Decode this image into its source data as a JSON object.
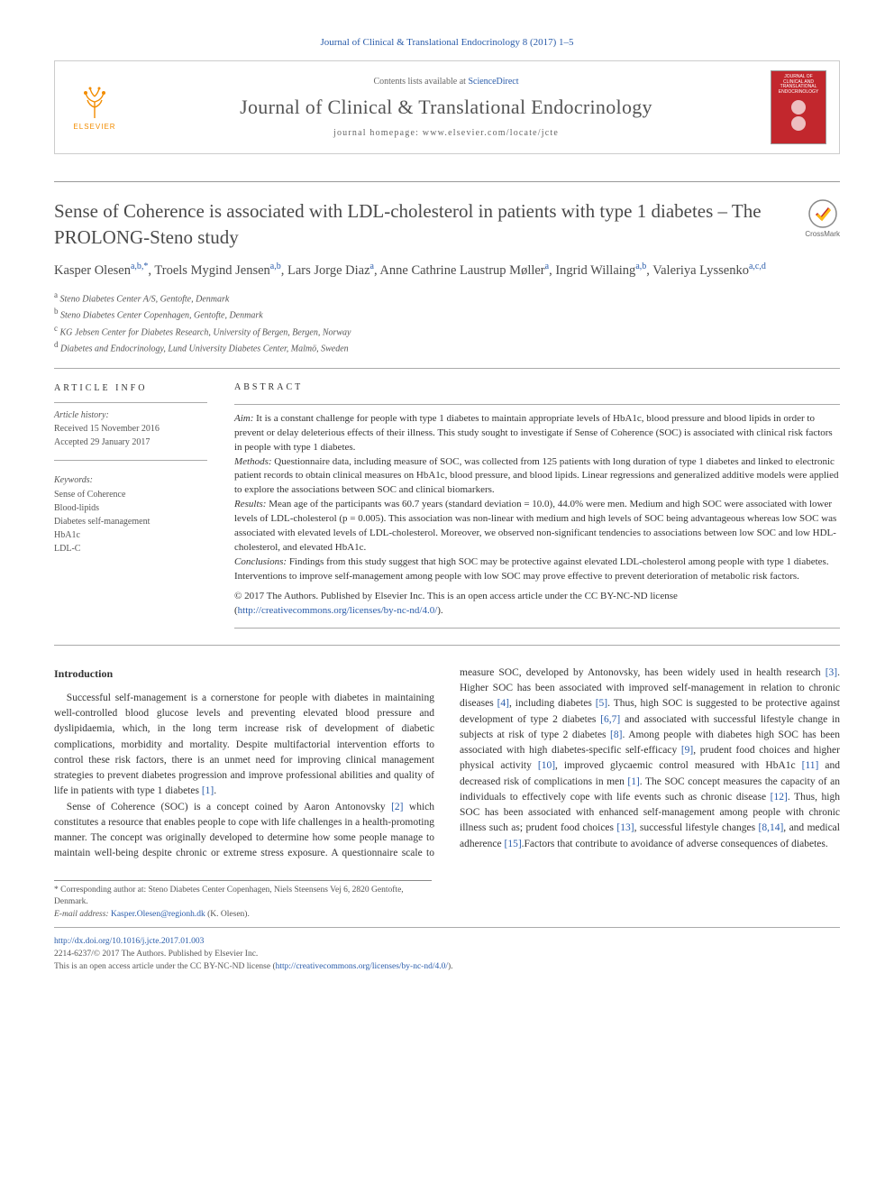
{
  "journal_ref": "Journal of Clinical & Translational Endocrinology 8 (2017) 1–5",
  "header": {
    "contents_prefix": "Contents lists available at ",
    "contents_link": "ScienceDirect",
    "journal_name": "Journal of Clinical & Translational Endocrinology",
    "homepage_prefix": "journal homepage: ",
    "homepage_url": "www.elsevier.com/locate/jcte",
    "publisher_logo_text": "ELSEVIER",
    "cover_text": "JOURNAL OF CLINICAL AND TRANSLATIONAL ENDOCRINOLOGY"
  },
  "crossmark_label": "CrossMark",
  "title": "Sense of Coherence is associated with LDL-cholesterol in patients with type 1 diabetes – The PROLONG-Steno study",
  "authors_html": "Kasper Olesen<sup>a,b,*</sup>, Troels Mygind Jensen<sup>a,b</sup>, Lars Jorge Diaz<sup>a</sup>, Anne Cathrine Laustrup Møller<sup>a</sup>, Ingrid Willaing<sup>a,b</sup>, Valeriya Lyssenko<sup>a,c,d</sup>",
  "affiliations": [
    {
      "sup": "a",
      "text": "Steno Diabetes Center A/S, Gentofte, Denmark"
    },
    {
      "sup": "b",
      "text": "Steno Diabetes Center Copenhagen, Gentofte, Denmark"
    },
    {
      "sup": "c",
      "text": "KG Jebsen Center for Diabetes Research, University of Bergen, Bergen, Norway"
    },
    {
      "sup": "d",
      "text": "Diabetes and Endocrinology, Lund University Diabetes Center, Malmö, Sweden"
    }
  ],
  "article_info": {
    "heading": "ARTICLE INFO",
    "history_label": "Article history:",
    "received": "Received 15 November 2016",
    "accepted": "Accepted 29 January 2017",
    "keywords_label": "Keywords:",
    "keywords": [
      "Sense of Coherence",
      "Blood-lipids",
      "Diabetes self-management",
      "HbA1c",
      "LDL-C"
    ]
  },
  "abstract": {
    "heading": "ABSTRACT",
    "aim_label": "Aim:",
    "aim": " It is a constant challenge for people with type 1 diabetes to maintain appropriate levels of HbA1c, blood pressure and blood lipids in order to prevent or delay deleterious effects of their illness. This study sought to investigate if Sense of Coherence (SOC) is associated with clinical risk factors in people with type 1 diabetes.",
    "methods_label": "Methods:",
    "methods": " Questionnaire data, including measure of SOC, was collected from 125 patients with long duration of type 1 diabetes and linked to electronic patient records to obtain clinical measures on HbA1c, blood pressure, and blood lipids. Linear regressions and generalized additive models were applied to explore the associations between SOC and clinical biomarkers.",
    "results_label": "Results:",
    "results": " Mean age of the participants was 60.7 years (standard deviation = 10.0), 44.0% were men. Medium and high SOC were associated with lower levels of LDL-cholesterol (p = 0.005). This association was non-linear with medium and high levels of SOC being advantageous whereas low SOC was associated with elevated levels of LDL-cholesterol. Moreover, we observed non-significant tendencies to associations between low SOC and low HDL-cholesterol, and elevated HbA1c.",
    "conclusions_label": "Conclusions:",
    "conclusions": " Findings from this study suggest that high SOC may be protective against elevated LDL-cholesterol among people with type 1 diabetes. Interventions to improve self-management among people with low SOC may prove effective to prevent deterioration of metabolic risk factors.",
    "copyright": "© 2017 The Authors. Published by Elsevier Inc. This is an open access article under the CC BY-NC-ND license (",
    "license_url": "http://creativecommons.org/licenses/by-nc-nd/4.0/",
    "license_close": ")."
  },
  "body": {
    "intro_heading": "Introduction",
    "p1": "Successful self-management is a cornerstone for people with diabetes in maintaining well-controlled blood glucose levels and preventing elevated blood pressure and dyslipidaemia, which, in the long term increase risk of development of diabetic complications, morbidity and mortality. Despite multifactorial intervention efforts to control these risk factors, there is an unmet need for improving clinical management strategies to prevent diabetes progression and improve professional abilities and quality of life in patients with type 1 diabetes ",
    "p1_ref": "[1]",
    "p1_end": ".",
    "p2a": "Sense of Coherence (SOC) is a concept coined by Aaron Antonovsky ",
    "p2_ref2": "[2]",
    "p2b": " which constitutes a resource that enables people to cope with life challenges in a health-promoting manner. The concept was originally developed to determine how some people ",
    "p2c": "manage to maintain well-being despite chronic or extreme stress exposure. A questionnaire scale to measure SOC, developed by Antonovsky, has been widely used in health research ",
    "p2_ref3": "[3]",
    "p2d": ". Higher SOC has been associated with improved self-management in relation to chronic diseases ",
    "p2_ref4": "[4]",
    "p2e": ", including diabetes ",
    "p2_ref5": "[5]",
    "p2f": ". Thus, high SOC is suggested to be protective against development of type 2 diabetes ",
    "p2_ref67": "[6,7]",
    "p2g": " and associated with successful lifestyle change in subjects at risk of type 2 diabetes ",
    "p2_ref8": "[8]",
    "p2h": ". Among people with diabetes high SOC has been associated with high diabetes-specific self-efficacy ",
    "p2_ref9": "[9]",
    "p2i": ", prudent food choices and higher physical activity ",
    "p2_ref10": "[10]",
    "p2j": ", improved glycaemic control measured with HbA1c ",
    "p2_ref11": "[11]",
    "p2k": " and decreased risk of complications in men ",
    "p2_ref1b": "[1]",
    "p2l": ". The SOC concept measures the capacity of an individuals to effectively cope with life events such as chronic disease ",
    "p2_ref12": "[12]",
    "p2m": ". Thus, high SOC has been associated with enhanced self-management among people with chronic illness such as; prudent food choices ",
    "p2_ref13": "[13]",
    "p2n": ", successful lifestyle changes ",
    "p2_ref814": "[8,14]",
    "p2o": ", and medical adherence ",
    "p2_ref15": "[15]",
    "p2p": ".Factors that contribute to avoidance of adverse consequences of diabetes."
  },
  "footnote": {
    "corr_label": "* Corresponding author at: ",
    "corr_text": "Steno Diabetes Center Copenhagen, Niels Steensens Vej 6, 2820 Gentofte, Denmark.",
    "email_label": "E-mail address: ",
    "email": "Kasper.Olesen@regionh.dk",
    "email_suffix": " (K. Olesen)."
  },
  "footer": {
    "doi": "http://dx.doi.org/10.1016/j.jcte.2017.01.003",
    "issn_line": "2214-6237/© 2017 The Authors. Published by Elsevier Inc.",
    "license_line": "This is an open access article under the CC BY-NC-ND license (",
    "license_url": "http://creativecommons.org/licenses/by-nc-nd/4.0/",
    "license_close": ")."
  },
  "colors": {
    "link": "#2a5caa",
    "accent": "#f28c00",
    "cover": "#c2272d"
  }
}
